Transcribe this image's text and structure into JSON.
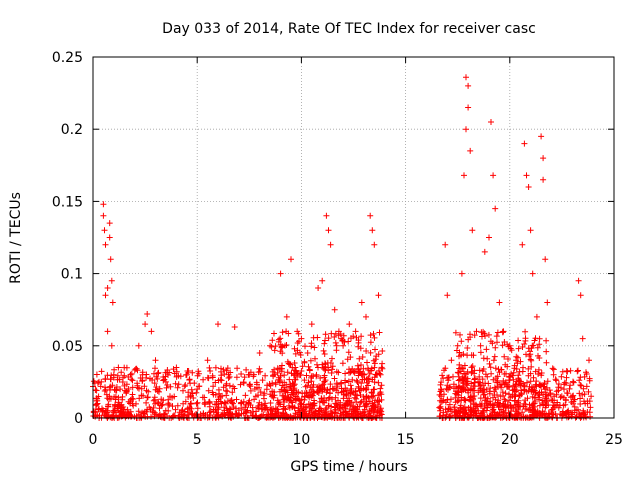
{
  "chart_data": {
    "type": "scatter",
    "title": "Day 033 of 2014, Rate Of TEC Index for receiver casc",
    "xlabel": "GPS time / hours",
    "ylabel": "ROTI / TECUs",
    "xlim": [
      0,
      25
    ],
    "ylim": [
      0,
      0.25
    ],
    "xticks": [
      "0",
      "5",
      "10",
      "15",
      "20",
      "25"
    ],
    "yticks": [
      "0",
      "0.05",
      "0.1",
      "0.15",
      "0.2",
      "0.25"
    ],
    "xtick_values": [
      0,
      5,
      10,
      15,
      20,
      25
    ],
    "ytick_values": [
      0,
      0.05,
      0.1,
      0.15,
      0.2,
      0.25
    ],
    "grid": true,
    "marker": "+",
    "series": [
      {
        "name": "ROTI",
        "color": "#ff0000",
        "points": [
          [
            0.2,
            0.012
          ],
          [
            0.4,
            0.025
          ],
          [
            0.5,
            0.148
          ],
          [
            0.5,
            0.14
          ],
          [
            0.55,
            0.13
          ],
          [
            0.6,
            0.12
          ],
          [
            0.6,
            0.085
          ],
          [
            0.7,
            0.09
          ],
          [
            0.8,
            0.135
          ],
          [
            0.8,
            0.125
          ],
          [
            0.85,
            0.11
          ],
          [
            0.9,
            0.095
          ],
          [
            0.95,
            0.08
          ],
          [
            0.7,
            0.06
          ],
          [
            0.9,
            0.05
          ],
          [
            1.0,
            0.03
          ],
          [
            1.3,
            0.02
          ],
          [
            1.8,
            0.03
          ],
          [
            2.2,
            0.05
          ],
          [
            2.5,
            0.065
          ],
          [
            2.6,
            0.072
          ],
          [
            2.8,
            0.06
          ],
          [
            3.0,
            0.04
          ],
          [
            3.5,
            0.025
          ],
          [
            4.0,
            0.035
          ],
          [
            4.5,
            0.03
          ],
          [
            5.0,
            0.02
          ],
          [
            5.5,
            0.04
          ],
          [
            6.0,
            0.065
          ],
          [
            6.5,
            0.03
          ],
          [
            6.8,
            0.063
          ],
          [
            7.5,
            0.03
          ],
          [
            8.0,
            0.045
          ],
          [
            8.5,
            0.05
          ],
          [
            9.0,
            0.1
          ],
          [
            9.3,
            0.07
          ],
          [
            9.5,
            0.11
          ],
          [
            9.8,
            0.06
          ],
          [
            10.0,
            0.055
          ],
          [
            10.3,
            0.045
          ],
          [
            10.5,
            0.065
          ],
          [
            10.8,
            0.09
          ],
          [
            11.0,
            0.095
          ],
          [
            11.2,
            0.14
          ],
          [
            11.3,
            0.13
          ],
          [
            11.4,
            0.12
          ],
          [
            11.6,
            0.075
          ],
          [
            11.8,
            0.06
          ],
          [
            12.0,
            0.05
          ],
          [
            12.3,
            0.065
          ],
          [
            12.6,
            0.06
          ],
          [
            12.9,
            0.08
          ],
          [
            13.1,
            0.07
          ],
          [
            13.3,
            0.14
          ],
          [
            13.4,
            0.13
          ],
          [
            13.5,
            0.12
          ],
          [
            13.7,
            0.085
          ],
          [
            13.8,
            0.03
          ],
          [
            16.7,
            0.02
          ],
          [
            16.9,
            0.12
          ],
          [
            17.0,
            0.085
          ],
          [
            17.2,
            0.04
          ],
          [
            17.5,
            0.05
          ],
          [
            17.7,
            0.1
          ],
          [
            17.8,
            0.168
          ],
          [
            17.9,
            0.2
          ],
          [
            17.9,
            0.236
          ],
          [
            18.0,
            0.23
          ],
          [
            18.0,
            0.215
          ],
          [
            18.1,
            0.185
          ],
          [
            18.2,
            0.13
          ],
          [
            18.4,
            0.06
          ],
          [
            18.6,
            0.05
          ],
          [
            18.8,
            0.115
          ],
          [
            19.0,
            0.125
          ],
          [
            19.1,
            0.205
          ],
          [
            19.2,
            0.168
          ],
          [
            19.3,
            0.145
          ],
          [
            19.5,
            0.08
          ],
          [
            19.7,
            0.06
          ],
          [
            20.0,
            0.05
          ],
          [
            20.3,
            0.04
          ],
          [
            20.6,
            0.12
          ],
          [
            20.7,
            0.19
          ],
          [
            20.8,
            0.168
          ],
          [
            20.9,
            0.16
          ],
          [
            21.0,
            0.13
          ],
          [
            21.1,
            0.1
          ],
          [
            21.3,
            0.07
          ],
          [
            21.5,
            0.195
          ],
          [
            21.6,
            0.18
          ],
          [
            21.6,
            0.165
          ],
          [
            21.7,
            0.11
          ],
          [
            21.8,
            0.08
          ],
          [
            22.1,
            0.03
          ],
          [
            22.6,
            0.02
          ],
          [
            23.0,
            0.015
          ],
          [
            23.3,
            0.095
          ],
          [
            23.4,
            0.085
          ],
          [
            23.5,
            0.055
          ],
          [
            23.8,
            0.04
          ],
          [
            23.9,
            0.015
          ]
        ]
      }
    ],
    "dense_regions": [
      {
        "x": [
          0.0,
          13.9
        ],
        "y": [
          0.0,
          0.035
        ]
      },
      {
        "x": [
          8.5,
          13.9
        ],
        "y": [
          0.0,
          0.06
        ]
      },
      {
        "x": [
          16.6,
          23.9
        ],
        "y": [
          0.0,
          0.035
        ]
      },
      {
        "x": [
          17.4,
          21.8
        ],
        "y": [
          0.0,
          0.06
        ]
      }
    ]
  }
}
